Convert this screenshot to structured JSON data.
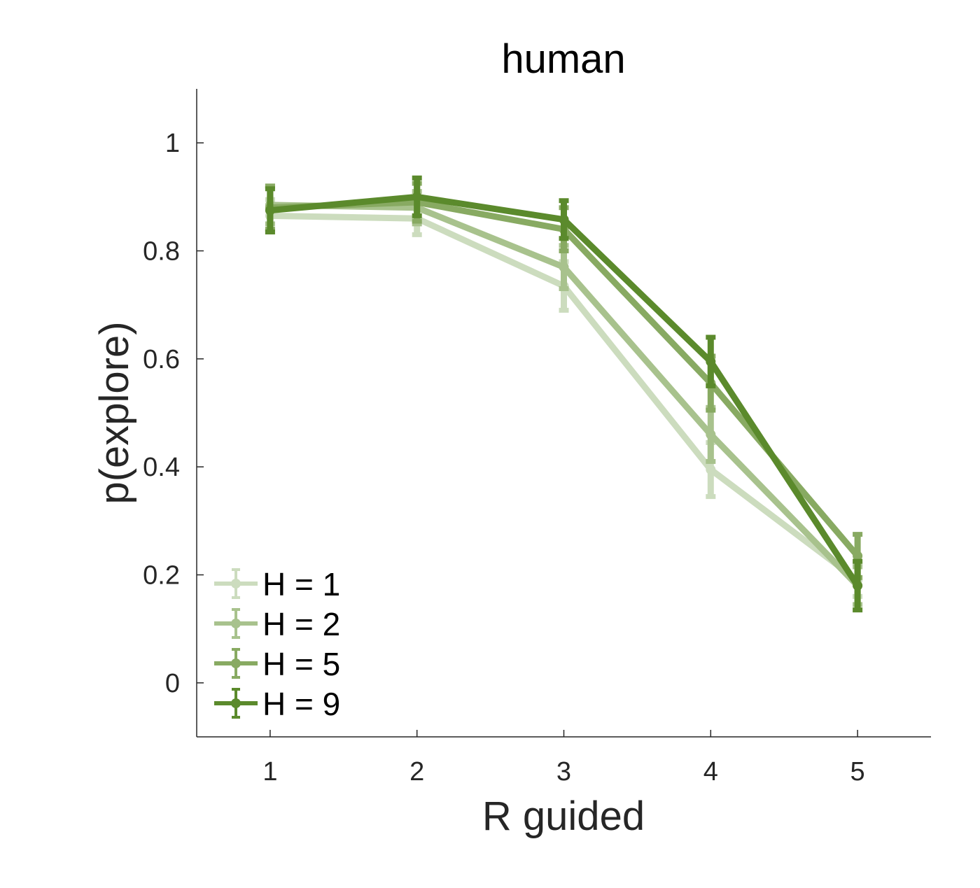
{
  "chart_data": {
    "type": "line",
    "title": "human",
    "xlabel": "R guided",
    "ylabel": "p(explore)",
    "x": [
      1,
      2,
      3,
      4,
      5
    ],
    "xlim": [
      0.5,
      5.5
    ],
    "ylim": [
      -0.1,
      1.1
    ],
    "xticks": [
      "1",
      "2",
      "3",
      "4",
      "5"
    ],
    "yticks": [
      {
        "value": 0,
        "label": "0"
      },
      {
        "value": 0.2,
        "label": "0.2"
      },
      {
        "value": 0.4,
        "label": "0.4"
      },
      {
        "value": 0.6,
        "label": "0.6"
      },
      {
        "value": 0.8,
        "label": "0.8"
      },
      {
        "value": 1,
        "label": "1"
      }
    ],
    "grid": false,
    "legend_position": "bottom-left",
    "series": [
      {
        "name": "H = 1",
        "color": "#ccdcbe",
        "values": [
          0.865,
          0.86,
          0.735,
          0.395,
          0.19
        ],
        "errors": [
          0.03,
          0.03,
          0.045,
          0.05,
          0.03
        ]
      },
      {
        "name": "H = 2",
        "color": "#a8c28d",
        "values": [
          0.885,
          0.88,
          0.77,
          0.46,
          0.18
        ],
        "errors": [
          0.035,
          0.03,
          0.04,
          0.05,
          0.035
        ]
      },
      {
        "name": "H = 5",
        "color": "#88aa62",
        "values": [
          0.88,
          0.89,
          0.84,
          0.555,
          0.235
        ],
        "errors": [
          0.04,
          0.035,
          0.04,
          0.05,
          0.04
        ]
      },
      {
        "name": "H = 9",
        "color": "#5b8a2c",
        "values": [
          0.875,
          0.9,
          0.858,
          0.595,
          0.18
        ],
        "errors": [
          0.04,
          0.035,
          0.035,
          0.045,
          0.045
        ]
      }
    ]
  }
}
